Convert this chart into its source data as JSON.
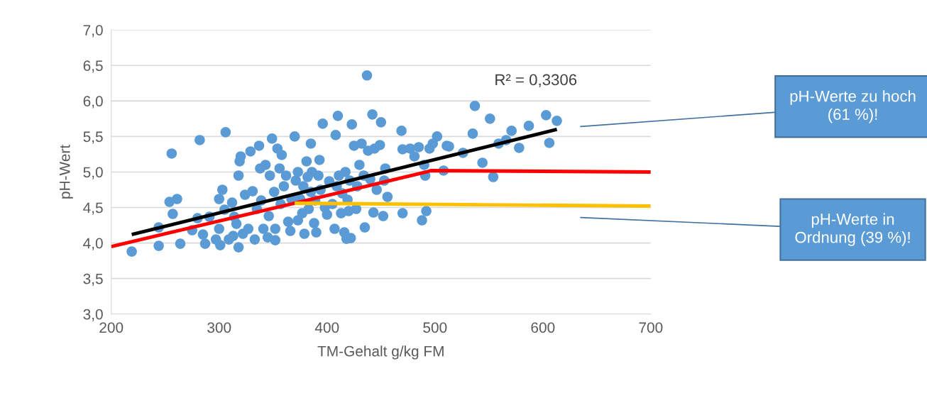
{
  "chart_data": {
    "type": "scatter",
    "xlabel": "TM-Gehalt g/kg FM",
    "ylabel": "pH-Wert",
    "xlim": [
      200,
      700
    ],
    "xticks": [
      200,
      300,
      400,
      500,
      600,
      700
    ],
    "ylim": [
      3.0,
      7.0
    ],
    "yticks": [
      {
        "value": 3.0,
        "label": "3,0"
      },
      {
        "value": 3.5,
        "label": "3,5"
      },
      {
        "value": 4.0,
        "label": "4,0"
      },
      {
        "value": 4.5,
        "label": "4,5"
      },
      {
        "value": 5.0,
        "label": "5,0"
      },
      {
        "value": 5.5,
        "label": "5,5"
      },
      {
        "value": 6.0,
        "label": "6,0"
      },
      {
        "value": 6.5,
        "label": "6,5"
      },
      {
        "value": 7.0,
        "label": "7,0"
      }
    ],
    "grid": "y",
    "legend": false,
    "series": [
      {
        "marker": "circle",
        "color": "#5b9bd5",
        "x": [
          219,
          244,
          244,
          254,
          257,
          256,
          261,
          264,
          275,
          280,
          282,
          285,
          287,
          291,
          297,
          300,
          300,
          301,
          303,
          305,
          306,
          309,
          312,
          313,
          314,
          316,
          318,
          318,
          319,
          320,
          322,
          324,
          327,
          329,
          331,
          333,
          335,
          337,
          338,
          339,
          341,
          343,
          345,
          346,
          347,
          349,
          351,
          352,
          352,
          354,
          356,
          357,
          358,
          360,
          362,
          364,
          366,
          367,
          370,
          371,
          373,
          373,
          375,
          377,
          378,
          379,
          381,
          382,
          383,
          385,
          385,
          386,
          388,
          389,
          390,
          392,
          393,
          394,
          396,
          398,
          400,
          402,
          405,
          407,
          408,
          409,
          410,
          411,
          413,
          414,
          416,
          417,
          418,
          419,
          420,
          421,
          422,
          423,
          425,
          427,
          428,
          430,
          432,
          434,
          435,
          437,
          438,
          440,
          442,
          443,
          444,
          446,
          449,
          450,
          452,
          453,
          454,
          456,
          469,
          470,
          470,
          477,
          481,
          485,
          488,
          490,
          491,
          492,
          495,
          498,
          502,
          508,
          511,
          513,
          526,
          535,
          537,
          544,
          551,
          554,
          559,
          566,
          571,
          578,
          587,
          603,
          606,
          613
        ],
        "values": [
          3.88,
          3.96,
          4.22,
          4.58,
          4.41,
          5.26,
          4.62,
          3.99,
          4.18,
          4.35,
          5.45,
          4.12,
          3.99,
          4.37,
          4.05,
          4.62,
          4.2,
          3.97,
          4.75,
          4.47,
          5.56,
          4.05,
          4.57,
          4.1,
          4.37,
          4.27,
          4.95,
          3.94,
          5.15,
          5.22,
          4.13,
          4.68,
          4.2,
          5.29,
          4.73,
          4.05,
          4.48,
          5.37,
          5.05,
          4.6,
          4.2,
          5.1,
          4.08,
          4.38,
          4.95,
          5.47,
          4.72,
          4.2,
          4.04,
          5.33,
          5.05,
          4.55,
          5.24,
          4.8,
          4.95,
          4.3,
          4.17,
          4.62,
          5.5,
          4.88,
          5.0,
          4.32,
          4.62,
          4.42,
          4.8,
          4.13,
          5.15,
          4.93,
          4.48,
          4.72,
          5.4,
          5.0,
          4.28,
          4.6,
          4.15,
          4.95,
          5.17,
          4.75,
          5.68,
          4.5,
          4.4,
          4.87,
          4.55,
          4.2,
          5.52,
          4.8,
          5.79,
          4.95,
          4.42,
          4.7,
          4.15,
          5.0,
          4.06,
          4.61,
          4.45,
          4.88,
          4.07,
          5.67,
          5.37,
          4.48,
          4.8,
          5.1,
          5.4,
          4.95,
          4.22,
          6.36,
          5.3,
          4.9,
          5.81,
          4.43,
          5.33,
          4.75,
          5.38,
          5.7,
          4.38,
          4.88,
          5.05,
          4.65,
          5.58,
          5.32,
          4.42,
          5.33,
          5.22,
          5.35,
          4.32,
          5.1,
          4.95,
          4.45,
          5.33,
          5.4,
          5.5,
          5.02,
          5.37,
          5.36,
          5.27,
          5.54,
          5.93,
          5.13,
          5.75,
          4.93,
          5.4,
          5.45,
          5.58,
          5.34,
          5.65,
          5.8,
          5.41,
          5.72
        ]
      },
      {
        "type": "line",
        "marker": "none",
        "color": "#000000",
        "x": [
          219,
          613
        ],
        "values": [
          4.12,
          5.6
        ]
      },
      {
        "type": "line",
        "marker": "none",
        "color": "#ff0000",
        "x": [
          200,
          492,
          496,
          700
        ],
        "values": [
          3.95,
          5.0,
          5.02,
          5.0
        ]
      },
      {
        "type": "line",
        "marker": "none",
        "color": "#ffc000",
        "x": [
          370,
          700
        ],
        "values": [
          4.56,
          4.52
        ]
      }
    ],
    "annotations": [
      "R² = 0,3306",
      "pH-Werte zu hoch\n(61 %)!",
      "pH-Werte in\nOrdnung (39 %)!"
    ]
  }
}
